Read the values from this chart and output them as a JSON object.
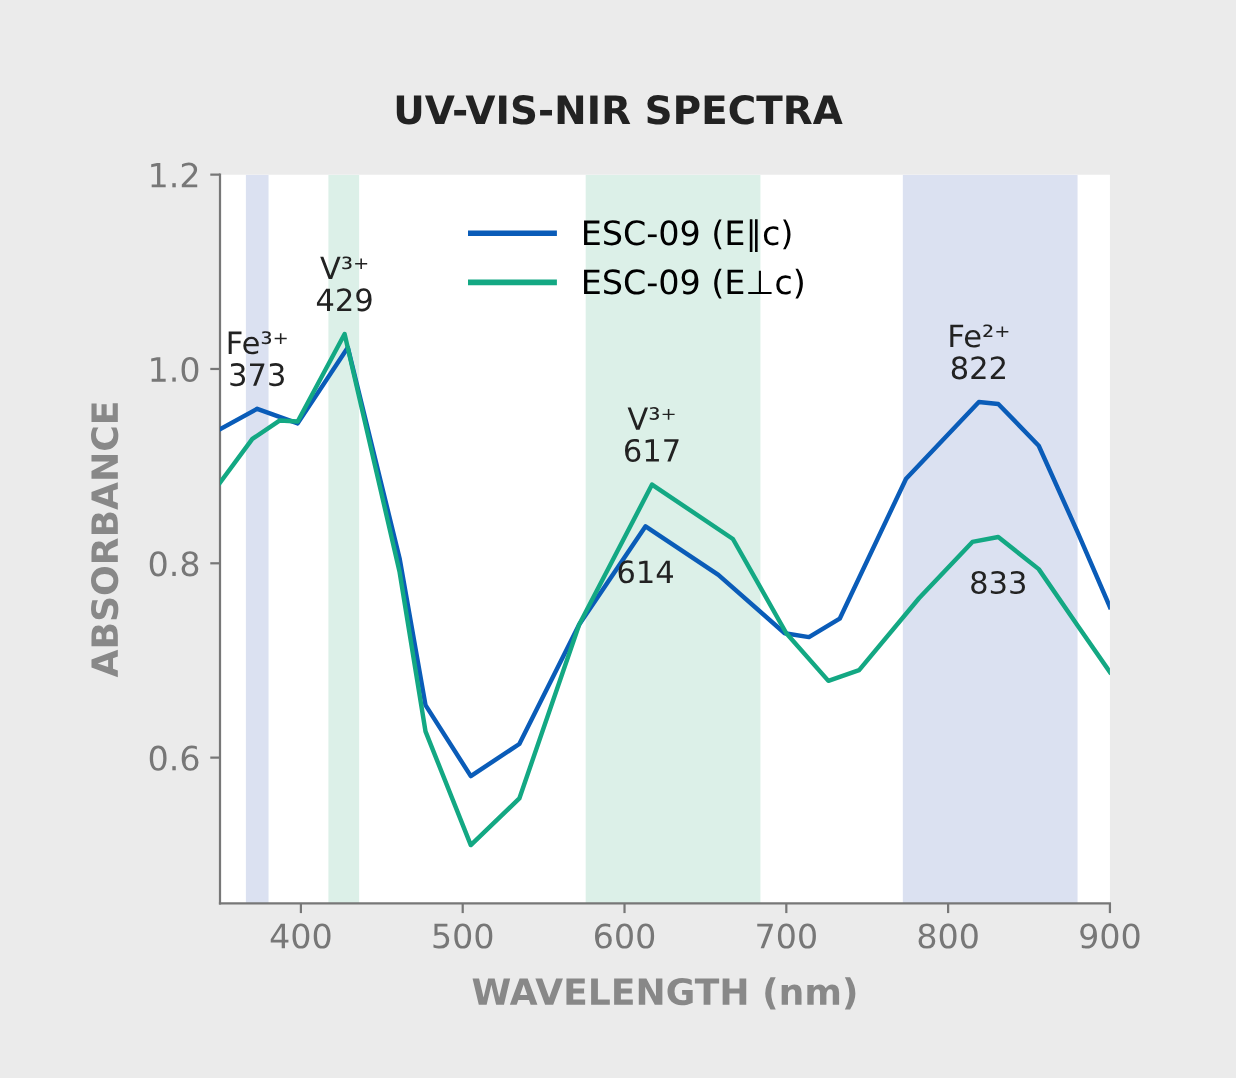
{
  "chart_data": {
    "type": "line",
    "title": "UV-VIS-NIR SPECTRA",
    "xlabel": "WAVELENGTH (nm)",
    "ylabel": "ABSORBANCE",
    "series": [
      {
        "name": "ESC-09 (E∥c)",
        "color": "#0a5cb8",
        "x": [
          350,
          373,
          398,
          429,
          461,
          477,
          505,
          535,
          572,
          613,
          658,
          699,
          714,
          733,
          774,
          819,
          831,
          856,
          880,
          900
        ],
        "values": [
          0.938,
          0.959,
          0.944,
          1.022,
          0.805,
          0.654,
          0.581,
          0.614,
          0.737,
          0.838,
          0.788,
          0.728,
          0.724,
          0.743,
          0.887,
          0.966,
          0.964,
          0.921,
          0.832,
          0.755
        ]
      },
      {
        "name": "ESC-09 (E⊥c)",
        "color": "#13a883",
        "x": [
          350,
          370,
          387,
          398,
          427,
          461,
          477,
          505,
          535,
          572,
          617,
          667,
          700,
          726,
          745,
          782,
          815,
          831,
          856,
          880,
          900
        ],
        "values": [
          0.883,
          0.928,
          0.947,
          0.946,
          1.036,
          0.791,
          0.627,
          0.51,
          0.558,
          0.737,
          0.881,
          0.825,
          0.728,
          0.679,
          0.69,
          0.764,
          0.822,
          0.827,
          0.794,
          0.736,
          0.688
        ]
      }
    ],
    "xlim": [
      350,
      900
    ],
    "xticks": [
      400,
      500,
      600,
      700,
      800,
      900
    ],
    "ylim": [
      0.45,
      1.2
    ],
    "yticks": [
      {
        "value": 0.6,
        "label": "0.6"
      },
      {
        "value": 0.8,
        "label": "0.8"
      },
      {
        "value": 1.0,
        "label": "1.0"
      },
      {
        "value": 1.2,
        "label": "1.2"
      }
    ],
    "bands": [
      {
        "axis": "x",
        "from": 366,
        "to": 380,
        "color": "#dbe1f1"
      },
      {
        "axis": "x",
        "from": 417,
        "to": 436,
        "color": "#dcf0e8"
      },
      {
        "axis": "x",
        "from": 576,
        "to": 684,
        "color": "#dcf0e8"
      },
      {
        "axis": "x",
        "from": 772,
        "to": 880,
        "color": "#dbe1f1"
      }
    ],
    "annotations": [
      {
        "text": "Fe³⁺\n373",
        "x": 373,
        "y": 0.959
      },
      {
        "text": "V³⁺\n429",
        "x": 427,
        "y": 1.036
      },
      {
        "text": "V³⁺\n617",
        "x": 617,
        "y": 0.881
      },
      {
        "text": "614",
        "x": 613,
        "y": 0.838
      },
      {
        "text": "Fe²⁺\n822",
        "x": 819,
        "y": 0.966
      },
      {
        "text": "833",
        "x": 831,
        "y": 0.827
      }
    ],
    "grid": false,
    "legend": "top",
    "marker": "none",
    "line_style": "solid"
  }
}
